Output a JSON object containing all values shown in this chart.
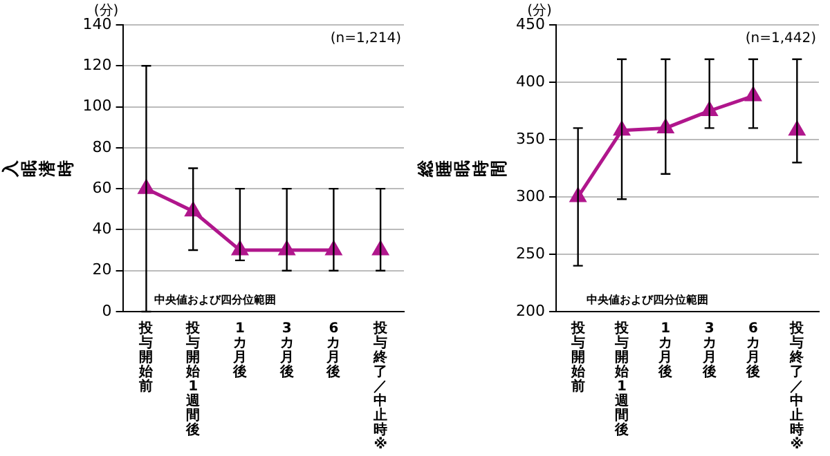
{
  "chart_data": [
    {
      "type": "line",
      "ylabel": "入眠潜時",
      "categories": [
        "投与開始前",
        "投与開始1週間後",
        "1カ月後",
        "3カ月後",
        "6カ月後",
        "投与終了／中止時※"
      ],
      "series": [
        {
          "color": "#b0168c",
          "values": [
            60,
            49,
            30,
            30,
            30,
            null
          ],
          "errors": [
            [
              0,
              120
            ],
            [
              30,
              70
            ],
            [
              25,
              60
            ],
            [
              20,
              60
            ],
            [
              20,
              60
            ],
            null
          ]
        },
        {
          "type": "scatter",
          "color": "#b0168c",
          "values": [
            null,
            null,
            null,
            null,
            null,
            30
          ],
          "errors": [
            null,
            null,
            null,
            null,
            null,
            [
              20,
              60
            ]
          ]
        }
      ],
      "ylim": [
        0,
        140
      ],
      "yticks": [
        0,
        20,
        40,
        60,
        80,
        100,
        120,
        140
      ],
      "grid": "y",
      "marker": "triangle",
      "legend": false,
      "annotations": [
        "(分)",
        "(n=1,214)",
        "中央値および四分位範囲"
      ]
    },
    {
      "type": "line",
      "ylabel": "総睡眠時間",
      "categories": [
        "投与開始前",
        "投与開始1週間後",
        "1カ月後",
        "3カ月後",
        "6カ月後",
        "投与終了／中止時※"
      ],
      "series": [
        {
          "color": "#b0168c",
          "values": [
            300,
            358,
            360,
            375,
            388,
            null
          ],
          "errors": [
            [
              240,
              360
            ],
            [
              298,
              420
            ],
            [
              320,
              420
            ],
            [
              360,
              420
            ],
            [
              360,
              420
            ],
            null
          ]
        },
        {
          "type": "scatter",
          "color": "#b0168c",
          "values": [
            null,
            null,
            null,
            null,
            null,
            358
          ],
          "errors": [
            null,
            null,
            null,
            null,
            null,
            [
              330,
              420
            ]
          ]
        }
      ],
      "ylim": [
        200,
        450
      ],
      "yticks": [
        200,
        250,
        300,
        350,
        400,
        450
      ],
      "grid": "y",
      "marker": "triangle",
      "legend": false,
      "annotations": [
        "(分)",
        "(n=1,442)",
        "中央値および四分位範囲"
      ]
    }
  ]
}
